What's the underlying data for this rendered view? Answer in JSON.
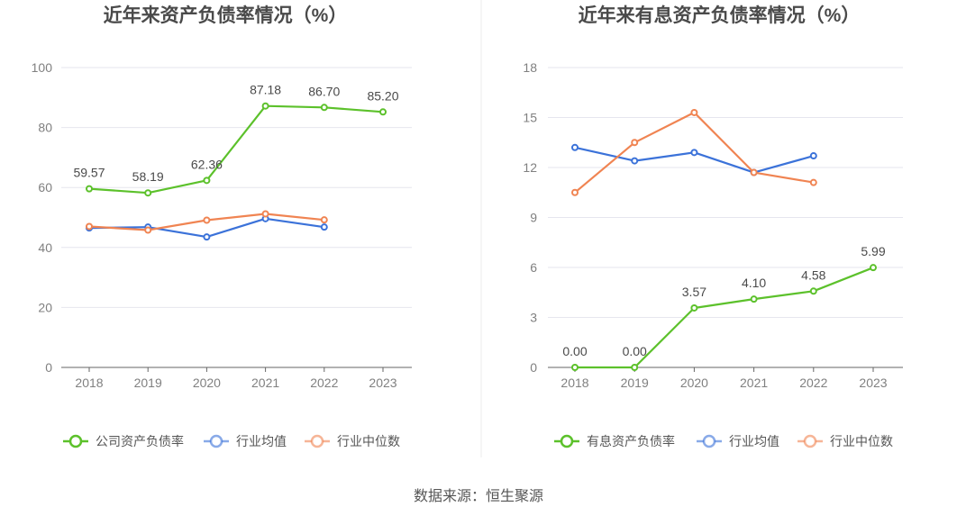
{
  "source": "数据来源：恒生聚源",
  "chart_data": [
    {
      "type": "line",
      "title": "近年来资产负债率情况（%）",
      "categories": [
        "2018",
        "2019",
        "2020",
        "2021",
        "2022",
        "2023"
      ],
      "ylim": [
        0,
        100
      ],
      "yticks": [
        0,
        20,
        40,
        60,
        80,
        100
      ],
      "grid": true,
      "legend_position": "bottom",
      "series": [
        {
          "name": "公司资产负债率",
          "color": "#5cc12b",
          "values": [
            59.57,
            58.19,
            62.36,
            87.18,
            86.7,
            85.2
          ],
          "labels": [
            "59.57",
            "58.19",
            "62.36",
            "87.18",
            "86.70",
            "85.20"
          ]
        },
        {
          "name": "行业均值",
          "color": "#3b72d9",
          "values": [
            46.5,
            46.8,
            43.5,
            49.6,
            46.8,
            null
          ]
        },
        {
          "name": "行业中位数",
          "color": "#f08452",
          "values": [
            47.0,
            45.8,
            49.1,
            51.2,
            49.2,
            null
          ]
        }
      ]
    },
    {
      "type": "line",
      "title": "近年来有息资产负债率情况（%）",
      "categories": [
        "2018",
        "2019",
        "2020",
        "2021",
        "2022",
        "2023"
      ],
      "ylim": [
        0,
        18
      ],
      "yticks": [
        0,
        3,
        6,
        9,
        12,
        15,
        18
      ],
      "grid": true,
      "legend_position": "bottom",
      "series": [
        {
          "name": "有息资产负债率",
          "color": "#5cc12b",
          "values": [
            0.0,
            0.0,
            3.57,
            4.1,
            4.58,
            5.99
          ],
          "labels": [
            "0.00",
            "0.00",
            "3.57",
            "4.10",
            "4.58",
            "5.99"
          ]
        },
        {
          "name": "行业均值",
          "color": "#3b72d9",
          "values": [
            13.2,
            12.4,
            12.9,
            11.7,
            12.7,
            null
          ]
        },
        {
          "name": "行业中位数",
          "color": "#f08452",
          "values": [
            10.5,
            13.5,
            15.3,
            11.7,
            11.1,
            null
          ]
        }
      ]
    }
  ]
}
